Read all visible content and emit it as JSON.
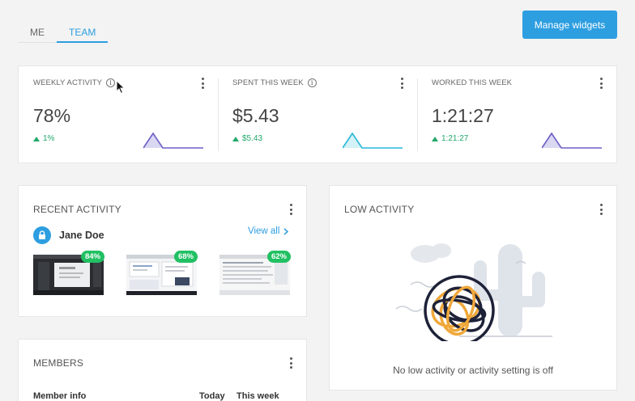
{
  "tabs": [
    {
      "label": "ME",
      "active": false
    },
    {
      "label": "TEAM",
      "active": true
    }
  ],
  "manage_widgets_label": "Manage widgets",
  "stats": [
    {
      "label": "WEEKLY ACTIVITY",
      "value": "78%",
      "delta": "1%",
      "has_info": true,
      "color": "#6c5fc7"
    },
    {
      "label": "SPENT THIS WEEK",
      "value": "$5.43",
      "delta": "$5.43",
      "has_info": true,
      "color": "#27b8d8"
    },
    {
      "label": "WORKED THIS WEEK",
      "value": "1:21:27",
      "delta": "1:21:27",
      "has_info": false,
      "color": "#6c5fc7"
    }
  ],
  "recent_activity": {
    "title": "RECENT ACTIVITY",
    "user_name": "Jane Doe",
    "view_all_label": "View all",
    "screenshots": [
      {
        "percent": "84%",
        "theme": "dark"
      },
      {
        "percent": "68%",
        "theme": "light"
      },
      {
        "percent": "62%",
        "theme": "light"
      }
    ]
  },
  "low_activity": {
    "title": "LOW ACTIVITY",
    "message": "No low activity or activity setting is off"
  },
  "members": {
    "title": "MEMBERS",
    "columns": [
      "Member info",
      "Today",
      "This week"
    ]
  },
  "colors": {
    "accent": "#2d9ee0",
    "positive": "#22a86a",
    "badge": "#21c063"
  }
}
